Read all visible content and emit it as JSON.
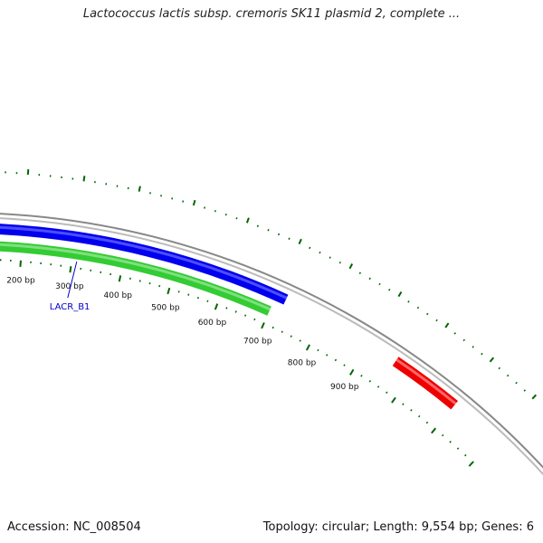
{
  "title": "Lactococcus lactis subsp. cremoris SK11 plasmid 2, complete ...",
  "footer": {
    "accession": "Accession: NC_008504",
    "summary": "Topology: circular; Length: 9,554 bp; Genes: 6"
  },
  "colors": {
    "backbone": "#888888",
    "forward_gene": "#0000ee",
    "reverse_gene": "#33cc33",
    "other_gene": "#ee0000",
    "ticks": "#006600",
    "gene_label": "#0000cc"
  },
  "scale_labels": [
    {
      "bp": 200,
      "text": "200 bp"
    },
    {
      "bp": 300,
      "text": "300 bp"
    },
    {
      "bp": 400,
      "text": "400 bp"
    },
    {
      "bp": 500,
      "text": "500 bp"
    },
    {
      "bp": 600,
      "text": "600 bp"
    },
    {
      "bp": 700,
      "text": "700 bp"
    },
    {
      "bp": 800,
      "text": "800 bp"
    },
    {
      "bp": 900,
      "text": "900 bp"
    }
  ],
  "genes": [
    {
      "name": "LACR_B1",
      "label": "LACR_B1",
      "strand": "forward",
      "start_bp": 0,
      "end_bp": 720
    },
    {
      "name": "",
      "label": "",
      "strand": "reverse",
      "start_bp": 0,
      "end_bp": 700
    },
    {
      "name": "",
      "label": "",
      "strand": "other",
      "start_bp": 960,
      "end_bp": 1100
    }
  ]
}
